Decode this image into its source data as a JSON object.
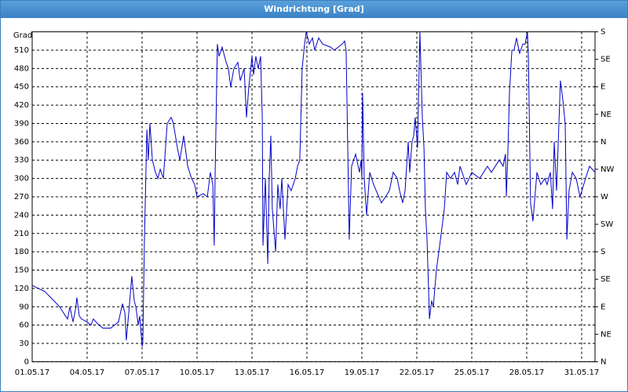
{
  "chart_data": {
    "type": "line",
    "title": "Windrichtung [Grad]",
    "y_label": "Grad",
    "color": "#0000c8",
    "grid": true,
    "x": [
      0,
      0.34,
      0.69,
      1.5,
      1.71,
      1.93,
      2.06,
      2.23,
      2.36,
      2.44,
      2.57,
      2.7,
      3.0,
      3.21,
      3.34,
      3.64,
      3.86,
      4.29,
      4.5,
      4.71,
      4.93,
      5.06,
      5.14,
      5.27,
      5.44,
      5.57,
      5.66,
      5.79,
      5.87,
      6.0,
      6.04,
      6.13,
      6.26,
      6.34,
      6.43,
      6.56,
      6.73,
      6.86,
      6.99,
      7.16,
      7.37,
      7.59,
      7.71,
      7.93,
      8.06,
      8.27,
      8.49,
      8.7,
      8.87,
      9.0,
      9.34,
      9.56,
      9.73,
      9.86,
      9.94,
      9.99,
      10.11,
      10.2,
      10.37,
      10.59,
      10.71,
      10.84,
      11.01,
      11.23,
      11.36,
      11.57,
      11.7,
      11.83,
      12.0,
      12.09,
      12.21,
      12.34,
      12.47,
      12.56,
      12.6,
      12.73,
      12.86,
      12.94,
      13.03,
      13.11,
      13.29,
      13.41,
      13.54,
      13.63,
      13.8,
      13.97,
      14.14,
      14.36,
      14.49,
      14.61,
      14.74,
      14.87,
      14.96,
      15.13,
      15.3,
      15.43,
      15.64,
      15.86,
      16.29,
      16.5,
      16.71,
      16.93,
      17.06,
      17.14,
      17.23,
      17.31,
      17.44,
      17.66,
      17.87,
      17.96,
      18.0,
      18.04,
      18.13,
      18.26,
      18.43,
      18.64,
      19.07,
      19.29,
      19.5,
      19.71,
      19.93,
      20.06,
      20.23,
      20.36,
      20.53,
      20.61,
      20.74,
      20.83,
      20.91,
      21.04,
      21.17,
      21.3,
      21.39,
      21.47,
      21.56,
      21.69,
      21.81,
      21.9,
      22.07,
      22.29,
      22.5,
      22.63,
      22.84,
      23.06,
      23.23,
      23.36,
      23.7,
      24.0,
      24.43,
      24.86,
      25.07,
      25.5,
      25.71,
      25.84,
      25.89,
      25.97,
      26.06,
      26.19,
      26.31,
      26.44,
      26.61,
      26.79,
      26.91,
      27.04,
      27.09,
      27.21,
      27.34,
      27.56,
      27.77,
      27.99,
      28.11,
      28.29,
      28.41,
      28.5,
      28.63,
      28.84,
      28.97,
      29.1,
      29.19,
      29.31,
      29.49,
      29.7,
      29.91,
      30.21,
      30.43,
      30.73
    ],
    "values": [
      125,
      120,
      115,
      90,
      80,
      70,
      90,
      65,
      85,
      105,
      75,
      70,
      65,
      60,
      70,
      60,
      55,
      55,
      60,
      65,
      95,
      80,
      35,
      80,
      140,
      100,
      90,
      60,
      75,
      25,
      30,
      200,
      380,
      330,
      390,
      330,
      310,
      300,
      315,
      300,
      390,
      400,
      390,
      350,
      330,
      370,
      320,
      300,
      290,
      270,
      275,
      270,
      310,
      290,
      190,
      310,
      520,
      500,
      515,
      490,
      480,
      450,
      480,
      490,
      460,
      480,
      400,
      450,
      500,
      470,
      500,
      480,
      500,
      400,
      190,
      300,
      160,
      300,
      370,
      250,
      180,
      290,
      250,
      300,
      200,
      290,
      280,
      300,
      320,
      330,
      480,
      520,
      540,
      520,
      530,
      510,
      530,
      520,
      515,
      510,
      515,
      520,
      525,
      510,
      350,
      200,
      320,
      340,
      310,
      330,
      300,
      440,
      300,
      240,
      310,
      290,
      260,
      270,
      280,
      310,
      300,
      280,
      260,
      280,
      360,
      310,
      360,
      370,
      400,
      350,
      540,
      400,
      350,
      250,
      200,
      70,
      100,
      90,
      150,
      200,
      250,
      310,
      300,
      310,
      290,
      320,
      290,
      310,
      300,
      320,
      310,
      330,
      320,
      340,
      270,
      340,
      440,
      510,
      510,
      530,
      505,
      520,
      520,
      540,
      500,
      260,
      230,
      310,
      290,
      300,
      290,
      310,
      250,
      360,
      280,
      460,
      430,
      390,
      200,
      280,
      310,
      300,
      270,
      300,
      320,
      310
    ],
    "xlim": [
      0,
      30.73
    ],
    "xticks": [
      {
        "value": 0,
        "label": "01.05.17"
      },
      {
        "value": 3,
        "label": "04.05.17"
      },
      {
        "value": 6,
        "label": "07.05.17"
      },
      {
        "value": 9,
        "label": "10.05.17"
      },
      {
        "value": 12,
        "label": "13.05.17"
      },
      {
        "value": 15,
        "label": "16.05.17"
      },
      {
        "value": 18,
        "label": "19.05.17"
      },
      {
        "value": 21,
        "label": "22.05.17"
      },
      {
        "value": 24,
        "label": "25.05.17"
      },
      {
        "value": 27,
        "label": "28.05.17"
      },
      {
        "value": 30,
        "label": "31.05.17"
      }
    ],
    "ylim": [
      0,
      540
    ],
    "yticks": [
      0,
      30,
      60,
      90,
      120,
      150,
      180,
      210,
      240,
      270,
      300,
      330,
      360,
      390,
      420,
      450,
      480,
      510
    ],
    "y2lim": [
      0,
      540
    ],
    "y2ticks": [
      {
        "value": 0,
        "label": "N"
      },
      {
        "value": 45,
        "label": "NE"
      },
      {
        "value": 90,
        "label": "E"
      },
      {
        "value": 135,
        "label": "SE"
      },
      {
        "value": 180,
        "label": "S"
      },
      {
        "value": 225,
        "label": "SW"
      },
      {
        "value": 270,
        "label": "W"
      },
      {
        "value": 315,
        "label": "NW"
      },
      {
        "value": 360,
        "label": "N"
      },
      {
        "value": 405,
        "label": "NE"
      },
      {
        "value": 450,
        "label": "E"
      },
      {
        "value": 495,
        "label": "SE"
      },
      {
        "value": 540,
        "label": "S"
      }
    ]
  }
}
